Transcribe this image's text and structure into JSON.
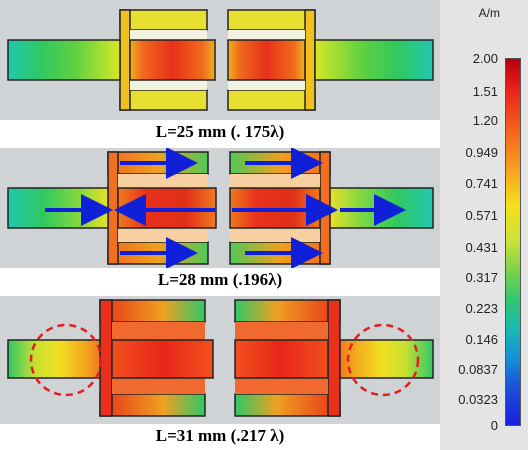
{
  "captions": {
    "panel1": "L=25 mm (. 175λ)",
    "panel2": "L=28 mm (.196λ)",
    "panel3": "L=31 mm (.217 λ)"
  },
  "colorbar": {
    "unit": "A/m",
    "ticks": [
      "2.00",
      "1.51",
      "1.20",
      "0.949",
      "0.741",
      "0.571",
      "0.431",
      "0.317",
      "0.223",
      "0.146",
      "0.0837",
      "0.0323",
      "0"
    ]
  },
  "colors": {
    "background_panel": "#cfd3d6",
    "arrow": "#1020d8",
    "circle": "#e02020"
  }
}
